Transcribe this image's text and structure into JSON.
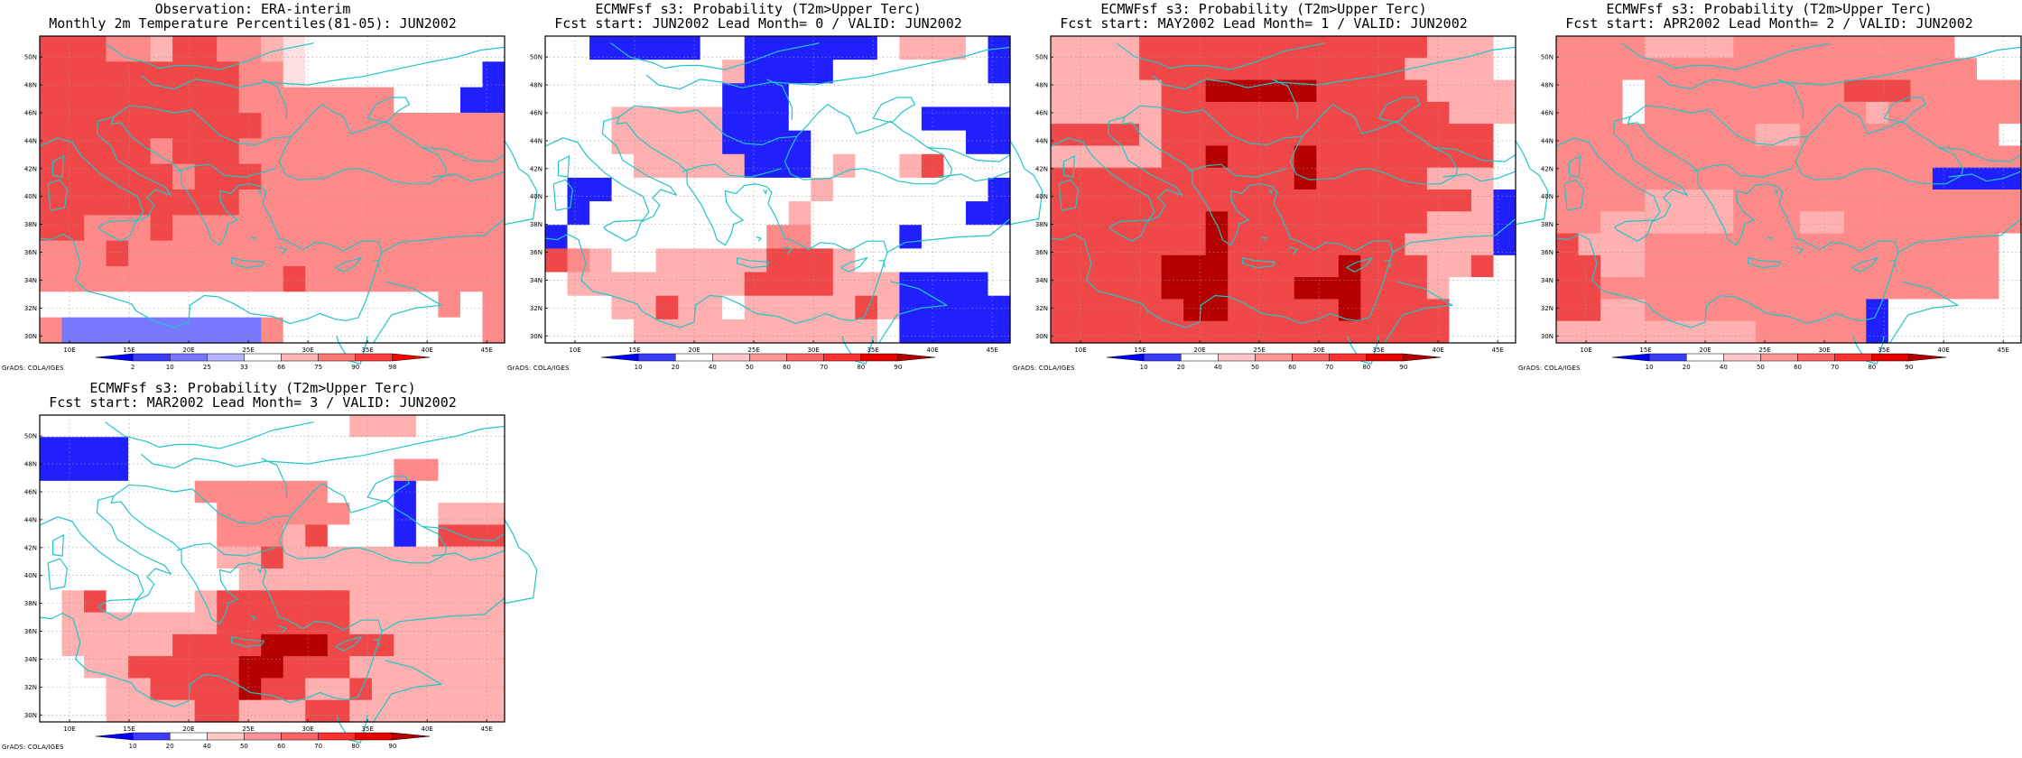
{
  "panels": [
    {
      "id": "obs",
      "title_line1": "Observation: ERA-interim",
      "title_line2": "Monthly 2m Temperature Percentiles(81-05): JUN2002",
      "credit": "GrADS: COLA/IGES",
      "colorbar": {
        "labels": [
          "2",
          "10",
          "25",
          "33",
          "66",
          "75",
          "90",
          "98"
        ],
        "colors": [
          "#0000ff",
          "#3c3cff",
          "#7878ff",
          "#b4b4ff",
          "#ffffff",
          "#ffb4b4",
          "#ff7878",
          "#ff3c3c",
          "#ff0000"
        ]
      },
      "grid": [
        "RRRLLlRRLLlW000000000",
        "RRRRRRRRRLLW00000000B",
        "RRRRRRRRRLLLLLLL000BB",
        "RRRRRRRRRRLLLLLLLLLLL",
        "RRRRRLRRRLLLLLLLLLLLL",
        "RRRRRRLRRRLLLLLLLLLLL",
        "RRRRRRRRRLLLLLLLLLLLL",
        "RRLLLRLLLLLLLLLLLLLLL",
        "LLLRLLLLLLLLLLLLLLLLL",
        "LLLLLLLLLLLRLLLLLLLLL",
        "000000000000000000L0L",
        "LbbbbbbbbbL000000000L"
      ]
    },
    {
      "id": "lead0",
      "title_line1": "ECMWFsf s3: Probability (T2m>Upper Terc)",
      "title_line2": "Fcst start: JUN2002  Lead Month= 0 / VALID: JUN2002",
      "credit": "GrADS: COLA/IGES",
      "colorbar": {
        "labels": [
          "10",
          "20",
          "40",
          "50",
          "60",
          "70",
          "80",
          "90"
        ],
        "colors": [
          "#0000ff",
          "#3c3cff",
          "#ffffff",
          "#ffc8c8",
          "#ff9696",
          "#ff6464",
          "#ff3232",
          "#e60000",
          "#b40000"
        ]
      },
      "grid": [
        "00BBBBB00BBBBBB0PPP0B",
        "00000000PBBBB0000000B",
        "00000000BBB0000000000",
        "000PPPPPBBB000000BBBB",
        "000PPPPPBBBB0000000BB",
        "0000PPPPPBBB0P00PR000",
        "0BB000000000P0000000B",
        "0B000000000P0000000BB",
        "B000000000LL0000B0000",
        "RLP00PPPPPRRRP0000000",
        "0PPPPPPPPRRRRPPPBBBB0",
        "000PPRPP0PPPPPRPBBBBB",
        "0000PPPPPPPPPPP0BBBBB"
      ]
    },
    {
      "id": "lead1",
      "title_line1": "ECMWFsf s3: Probability (T2m>Upper Terc)",
      "title_line2": "Fcst start: MAY2002  Lead Month= 1 / VALID: JUN2002",
      "credit": "GrADS: COLA/IGES",
      "colorbar": {
        "labels": [
          "10",
          "20",
          "40",
          "50",
          "60",
          "70",
          "80",
          "90"
        ],
        "colors": [
          "#0000ff",
          "#3c3cff",
          "#ffffff",
          "#ffc8c8",
          "#ff9696",
          "#ff6464",
          "#ff3232",
          "#e60000",
          "#b40000"
        ]
      },
      "grid": [
        "PPPPRRRRRRRRRRRRRPPP0",
        "PPPPRRRRRRRRRRRRPPPP0",
        "PPPPPRRDDDDDRRRRRPPPP",
        "PPPPPRRRRRRRRRRRRRPPP",
        "RRRRPRRRRRRRRRRRRRRR0",
        "PPPPPRRDRRRDRRRRRRRR0",
        "RRRRRRRRRRRDRRRRRPPP0",
        "RRRRRRRRRRRRRRRRRRRPB",
        "RRRRRRRDRRRRRRRRRPPPB",
        "RRRRRRRDRRRRRRRRPPPPB",
        "RRRRRDDDRRRRRDRRRPPR0",
        "RRRRRDDDRRRDDDRRRP000",
        "RRRRRRDDRRRRRDRRRR000",
        "RRRRRRRRRRRRRRRRRR000"
      ]
    },
    {
      "id": "lead2",
      "title_line1": "ECMWFsf s3: Probability (T2m>Upper Terc)",
      "title_line2": "Fcst start: APR2002  Lead Month= 2 / VALID: JUN2002",
      "credit": "GrADS: COLA/IGES",
      "colorbar": {
        "labels": [
          "10",
          "20",
          "40",
          "50",
          "60",
          "70",
          "80",
          "90"
        ],
        "colors": [
          "#0000ff",
          "#3c3cff",
          "#ffffff",
          "#ffc8c8",
          "#ff9696",
          "#ff6464",
          "#ff3232",
          "#e60000",
          "#b40000"
        ]
      },
      "grid": [
        "LLLLPPPPLLLLLLLLLL000",
        "LLLLLLLLLLLLLLLLLLL00",
        "LLL0LLLLLLLLLRRRLLLLL",
        "LLL0LLLLLLLLLLPLLLLLL",
        "LLLLLLLLLPPLLLLLLLLL0",
        "LLLLLLLLLLLLLLLLLLLLL",
        "LLLLLLLLLLLLLLLLLBBBB",
        "LLLLPPPPLLLLLLLLLLLLL",
        "LLPPPPPPLLLPPLLLLLLLL",
        "RPPPLLLLLLLLLLLLLLLL0",
        "RRPPLLLLLLLLLLLLLLLL0",
        "RRLLLLLLLLLLLLLLLLLL0",
        "RRPPLLLLLLLLLLB000000",
        "PPPPPPPPPLLLLLB000000"
      ]
    },
    {
      "id": "lead3",
      "title_line1": "ECMWFsf s3: Probability (T2m>Upper Terc)",
      "title_line2": "Fcst start: MAR2002  Lead Month= 3 / VALID: JUN2002",
      "credit": "GrADS: COLA/IGES",
      "colorbar": {
        "labels": [
          "10",
          "20",
          "40",
          "50",
          "60",
          "70",
          "80",
          "90"
        ],
        "colors": [
          "#0000ff",
          "#3c3cff",
          "#ffffff",
          "#ffc8c8",
          "#ff9696",
          "#ff6464",
          "#ff3232",
          "#e60000",
          "#b40000"
        ]
      },
      "grid": [
        "00000000000000PPP0000",
        "BBBB00000000000000000",
        "BBBB000000000000LL000",
        "0000000LLLLLL000B0000",
        "00000000LLLLLL00B0PPP",
        "00000000LLLPR000B0RRR",
        "00000000PPRPPPPPPPPPP",
        "000000000PPPPPPPPPPPP",
        "0PR0000PRRRRRRPPPPPPP",
        "0PPPPPPPRRRRRRPPPPPPP",
        "0PPPPPRRRRDDDRRRPPPPP",
        "00PPRRRRRDDRRRPPPPPPP",
        "000PPRRRRDRRPPRPPPPPP",
        "000PPPPRRPPPRRPPPPPPP"
      ]
    }
  ],
  "legend_colors": {
    "0": "#ffffff",
    "L": "#ff8a8a",
    "l": "#ffb4b4",
    "P": "#ffb0b0",
    "R": "#f04848",
    "D": "#b40000",
    "B": "#2020ff",
    "b": "#7878ff",
    "W": "#ffe0e0",
    "coast": "#22c5c5",
    "grid_line": "#999999"
  },
  "axis": {
    "lat_labels": [
      "30N",
      "32N",
      "34N",
      "36N",
      "38N",
      "40N",
      "42N",
      "44N",
      "46N",
      "48N",
      "50N"
    ],
    "lon_labels": [
      "10E",
      "15E",
      "20E",
      "25E",
      "30E",
      "35E",
      "40E",
      "45E"
    ]
  }
}
